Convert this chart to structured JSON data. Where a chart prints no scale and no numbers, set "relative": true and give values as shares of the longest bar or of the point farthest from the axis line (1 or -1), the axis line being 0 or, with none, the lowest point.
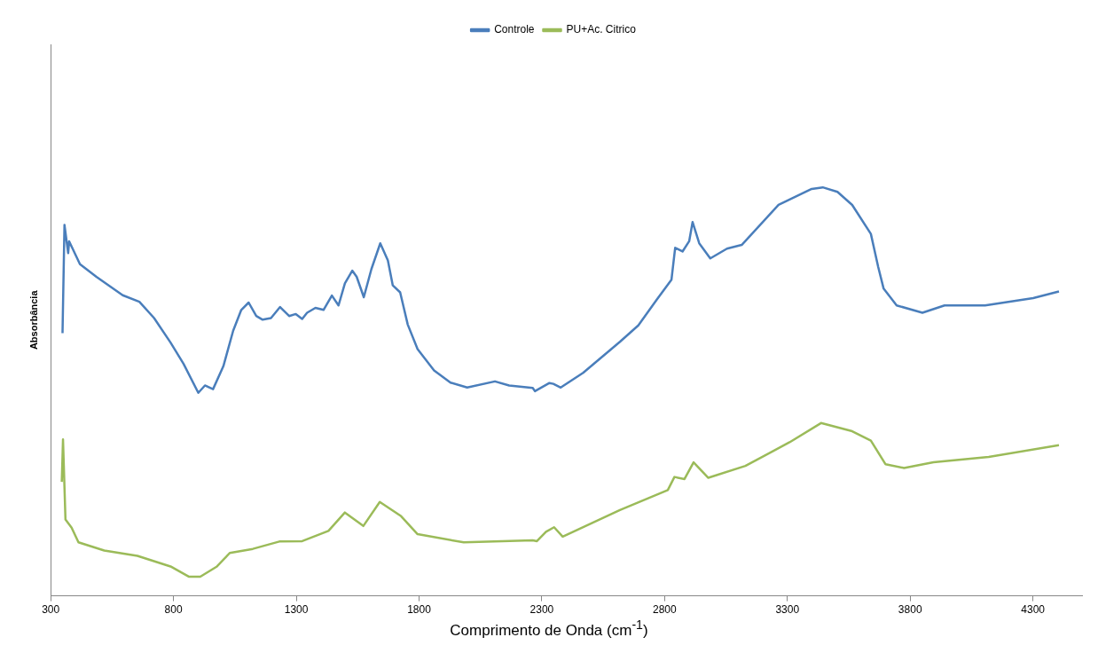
{
  "chart_data": {
    "type": "line",
    "xlabel": "Comprimento de Onda (cm$^{-1}$)",
    "ylabel": "Absorbância",
    "relative": true,
    "xlim": [
      300,
      4500
    ],
    "xticks": [
      300,
      800,
      1300,
      1800,
      2300,
      2800,
      3300,
      3800,
      4300
    ],
    "grid": false,
    "legend": "top",
    "marker": "none",
    "line_style": "solid",
    "series": [
      {
        "name": "Controle",
        "color": "#4a7ebb",
        "x": [
          348,
          356,
          371,
          375,
          419,
          486,
          593,
          661,
          721,
          788,
          841,
          901,
          928,
          961,
          1003,
          1043,
          1076,
          1106,
          1137,
          1163,
          1197,
          1234,
          1271,
          1298,
          1324,
          1344,
          1378,
          1411,
          1445,
          1472,
          1498,
          1528,
          1546,
          1575,
          1606,
          1642,
          1673,
          1693,
          1723,
          1754,
          1794,
          1861,
          1928,
          1996,
          2109,
          2167,
          2263,
          2272,
          2331,
          2347,
          2377,
          2468,
          2618,
          2693,
          2768,
          2828,
          2843,
          2873,
          2900,
          2914,
          2941,
          2986,
          3054,
          3114,
          3264,
          3399,
          3444,
          3504,
          3564,
          3640,
          3670,
          3692,
          3745,
          3850,
          3940,
          4105,
          4301,
          4406
        ],
        "values": [
          0.643,
          0.908,
          0.839,
          0.868,
          0.812,
          0.781,
          0.736,
          0.72,
          0.68,
          0.62,
          0.568,
          0.497,
          0.515,
          0.506,
          0.562,
          0.649,
          0.7,
          0.718,
          0.685,
          0.676,
          0.68,
          0.707,
          0.685,
          0.69,
          0.678,
          0.693,
          0.705,
          0.7,
          0.735,
          0.711,
          0.765,
          0.796,
          0.781,
          0.731,
          0.8,
          0.863,
          0.821,
          0.76,
          0.743,
          0.664,
          0.604,
          0.552,
          0.522,
          0.51,
          0.525,
          0.515,
          0.509,
          0.501,
          0.521,
          0.519,
          0.51,
          0.546,
          0.622,
          0.662,
          0.725,
          0.774,
          0.852,
          0.843,
          0.868,
          0.915,
          0.863,
          0.826,
          0.85,
          0.859,
          0.957,
          0.996,
          1,
          0.989,
          0.957,
          0.886,
          0.805,
          0.752,
          0.711,
          0.693,
          0.711,
          0.711,
          0.729,
          0.745
        ]
      },
      {
        "name": "PU+Ac. Citrico",
        "color": "#9bbb59",
        "x": [
          345,
          350,
          360,
          385,
          413,
          518,
          653,
          788,
          862,
          909,
          977,
          1029,
          1123,
          1231,
          1324,
          1431,
          1498,
          1573,
          1640,
          1727,
          1794,
          1982,
          2263,
          2280,
          2317,
          2350,
          2385,
          2618,
          2813,
          2840,
          2881,
          2918,
          2978,
          3129,
          3309,
          3437,
          3564,
          3640,
          3700,
          3775,
          3895,
          4120,
          4406
        ],
        "values": [
          0.279,
          0.383,
          0.187,
          0.167,
          0.131,
          0.111,
          0.098,
          0.072,
          0.047,
          0.047,
          0.072,
          0.105,
          0.115,
          0.133,
          0.134,
          0.159,
          0.204,
          0.171,
          0.23,
          0.195,
          0.151,
          0.131,
          0.136,
          0.134,
          0.157,
          0.168,
          0.145,
          0.21,
          0.259,
          0.291,
          0.286,
          0.327,
          0.289,
          0.318,
          0.376,
          0.423,
          0.403,
          0.38,
          0.322,
          0.313,
          0.327,
          0.34,
          0.369
        ]
      }
    ]
  }
}
